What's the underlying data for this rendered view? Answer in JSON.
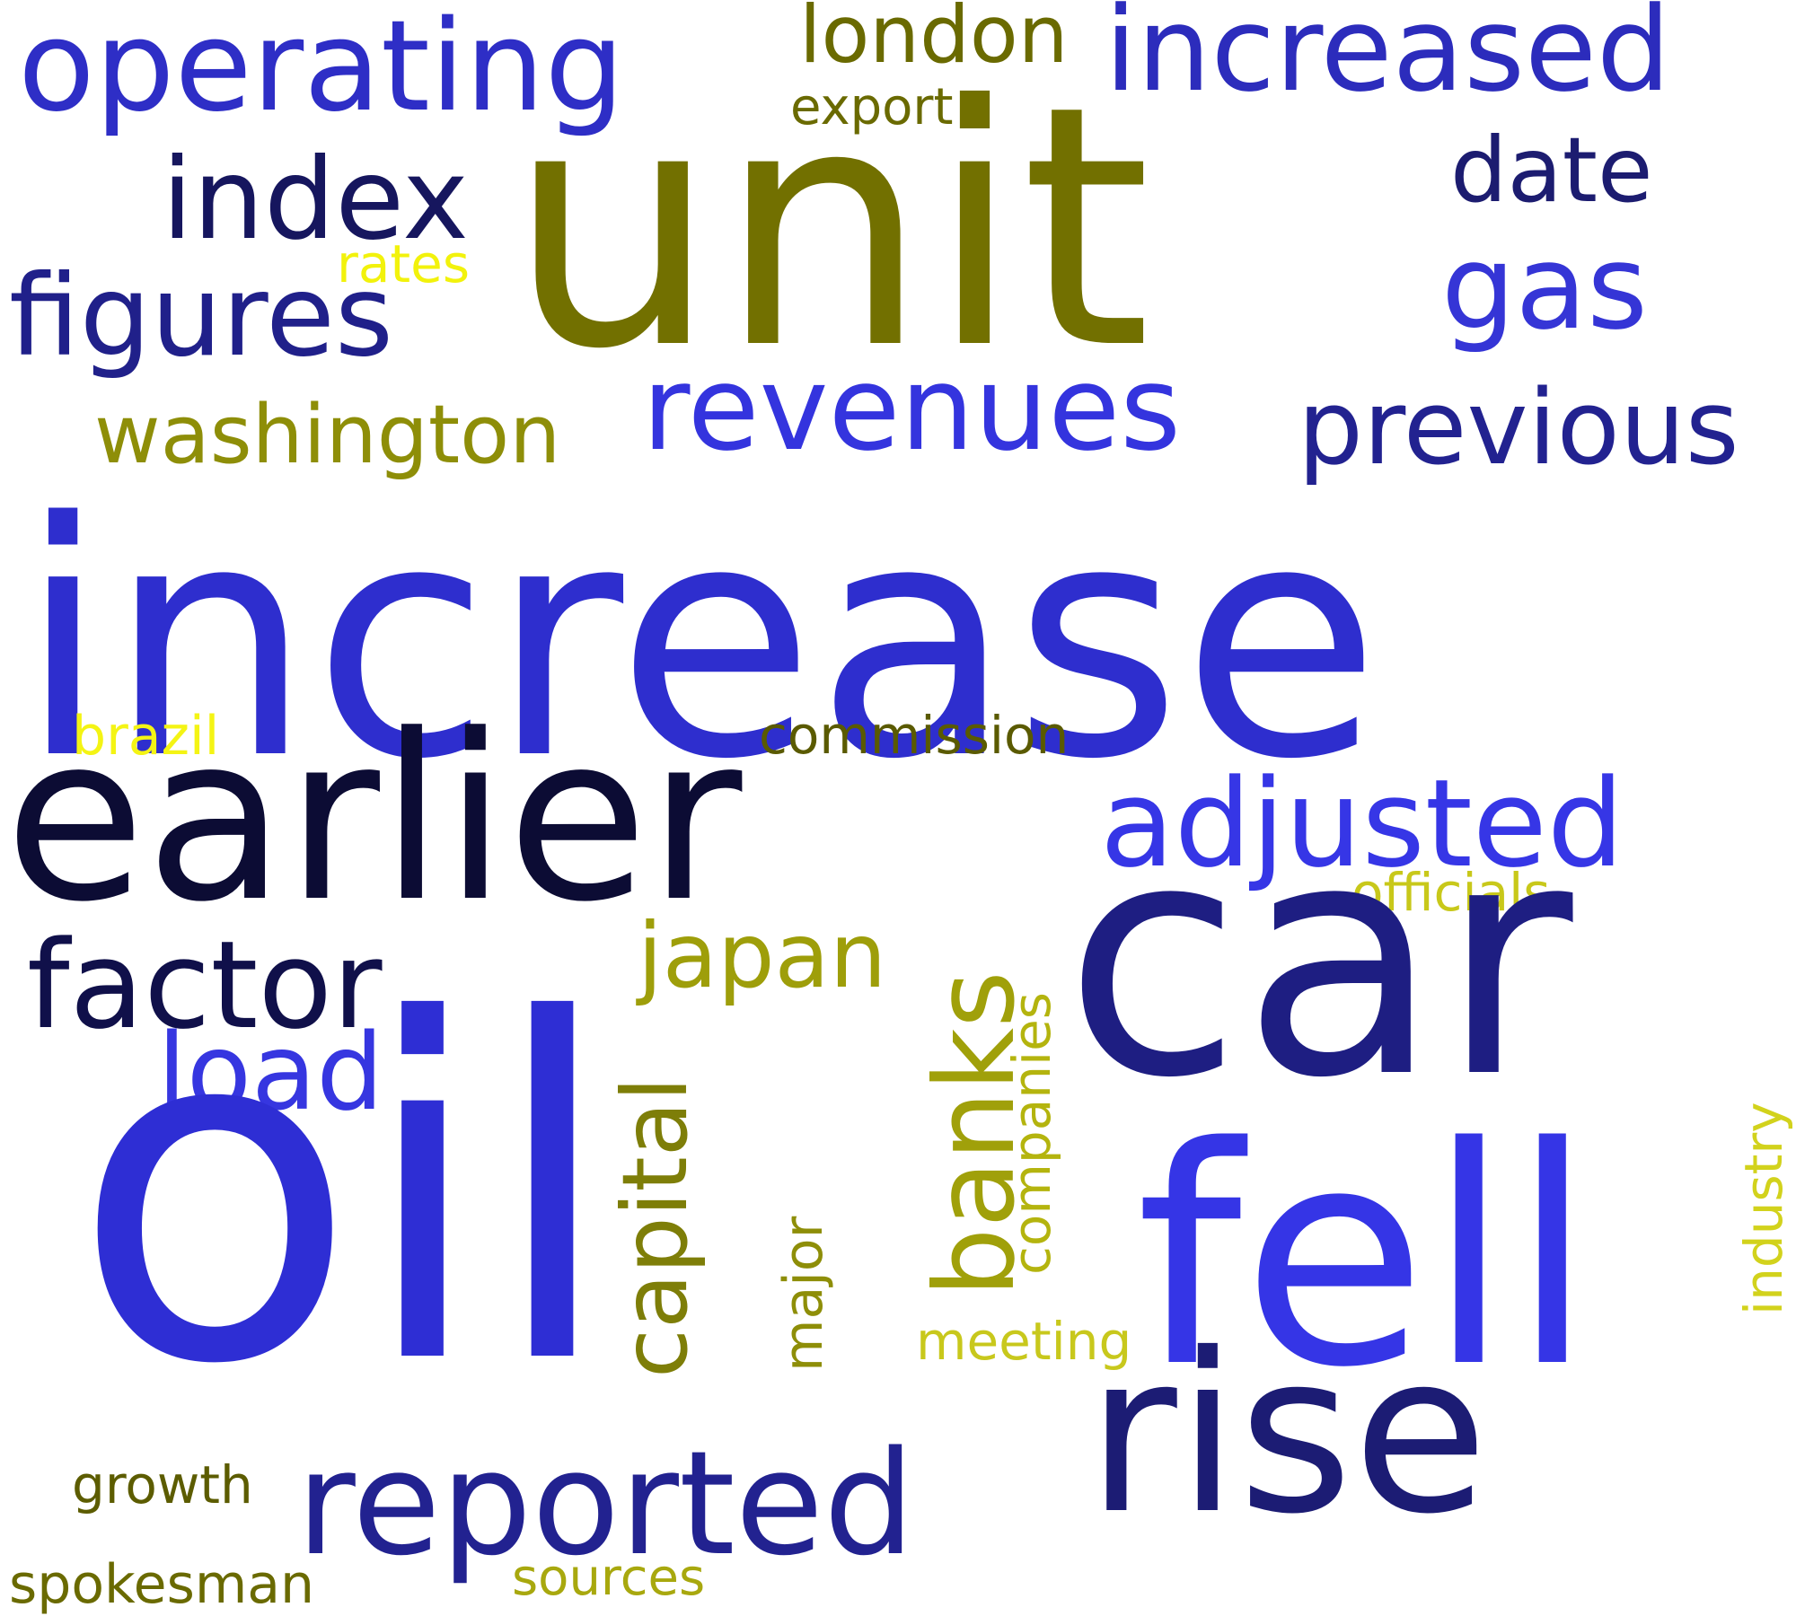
{
  "words": {
    "unit": {
      "text": "unit",
      "color": "#727000"
    },
    "increase": {
      "text": "increase",
      "color": "#2e2ece"
    },
    "oil": {
      "text": "oil",
      "color": "#2e2ed4"
    },
    "car": {
      "text": "car",
      "color": "#1e1e82"
    },
    "earlier": {
      "text": "earlier",
      "color": "#0c0c34"
    },
    "rise": {
      "text": "rise",
      "color": "#1c1c74"
    },
    "fell": {
      "text": "fell",
      "color": "#3535e6"
    },
    "operating": {
      "text": "operating",
      "color": "#2e2ec6"
    },
    "increased": {
      "text": "increased",
      "color": "#2c2cbc"
    },
    "revenues": {
      "text": "revenues",
      "color": "#3434de"
    },
    "adjusted": {
      "text": "adjusted",
      "color": "#3636e6"
    },
    "reported": {
      "text": "reported",
      "color": "#222290"
    },
    "figures": {
      "text": "figures",
      "color": "#20208a"
    },
    "index": {
      "text": "index",
      "color": "#16165e"
    },
    "previous": {
      "text": "previous",
      "color": "#222290"
    },
    "factor": {
      "text": "factor",
      "color": "#10104a"
    },
    "gas": {
      "text": "gas",
      "color": "#3535d6"
    },
    "date": {
      "text": "date",
      "color": "#1c1c70"
    },
    "load": {
      "text": "load",
      "color": "#3636e0"
    },
    "washington": {
      "text": "washington",
      "color": "#8e8e08"
    },
    "banks": {
      "text": "banks",
      "color": "#a0a00a"
    },
    "capital": {
      "text": "capital",
      "color": "#7e7e08"
    },
    "japan": {
      "text": "japan",
      "color": "#9e9e0a"
    },
    "london": {
      "text": "london",
      "color": "#6a6a00"
    },
    "export": {
      "text": "export",
      "color": "#6a6a00"
    },
    "commission": {
      "text": "commission",
      "color": "#5a5a00"
    },
    "officials": {
      "text": "officials",
      "color": "#c8c81a"
    },
    "companies": {
      "text": "companies",
      "color": "#b4b40e"
    },
    "industry": {
      "text": "industry",
      "color": "#d2d21c"
    },
    "major": {
      "text": "major",
      "color": "#8e8e08"
    },
    "meeting": {
      "text": "meeting",
      "color": "#c8c81c"
    },
    "brazil": {
      "text": "brazil",
      "color": "#f4f414"
    },
    "rates": {
      "text": "rates",
      "color": "#f2f20c"
    },
    "growth": {
      "text": "growth",
      "color": "#5c5c00"
    },
    "spokesman": {
      "text": "spokesman",
      "color": "#6a6a00"
    },
    "sources": {
      "text": "sources",
      "color": "#a8a80e"
    }
  }
}
